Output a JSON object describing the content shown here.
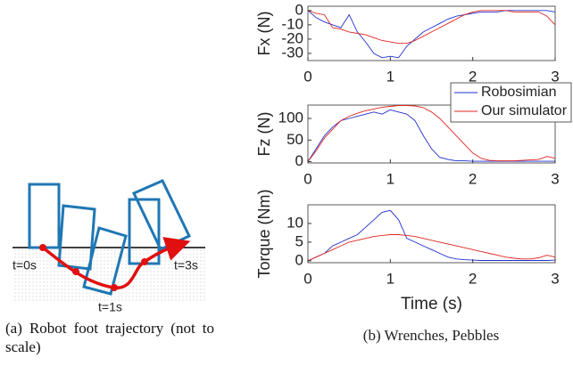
{
  "panel_a": {
    "time_labels": [
      "t=0s",
      "t=1s",
      "t=3s"
    ],
    "caption": "(a) Robot foot trajectory (not to scale)"
  },
  "panel_b": {
    "caption": "(b) Wrenches, Pebbles"
  },
  "chart_data": [
    {
      "type": "line",
      "y_label": "Fx (N)",
      "x": [
        0,
        0.1,
        0.2,
        0.3,
        0.4,
        0.5,
        0.6,
        0.7,
        0.8,
        0.9,
        1.0,
        1.1,
        1.2,
        1.3,
        1.4,
        1.5,
        1.6,
        1.7,
        1.8,
        1.9,
        2.0,
        2.1,
        2.2,
        2.3,
        2.4,
        2.5,
        2.6,
        2.7,
        2.8,
        2.9,
        3.0
      ],
      "xlim": [
        0,
        3
      ],
      "xticks": [
        0,
        1,
        2,
        3
      ],
      "ylim": [
        -35,
        3
      ],
      "yticks": [
        0,
        -10,
        -20,
        -30
      ],
      "series": [
        {
          "color": "#1f2fd0",
          "values": [
            0,
            -5,
            -8,
            -10,
            -12,
            -3,
            -15,
            -22,
            -30,
            -33,
            -32,
            -33,
            -25,
            -20,
            -15,
            -12,
            -9,
            -6,
            -4,
            -3,
            -2,
            -1,
            -1,
            -1,
            0,
            0,
            0,
            0,
            0,
            0,
            -1
          ]
        },
        {
          "color": "#e0251e",
          "values": [
            0,
            -2,
            -3,
            -12,
            -13,
            -15,
            -16,
            -17,
            -19,
            -21,
            -22,
            -23,
            -23,
            -21,
            -18,
            -15,
            -12,
            -9,
            -6,
            -3,
            -1,
            0,
            0,
            0,
            0,
            -1,
            -1,
            -1,
            -1,
            -4,
            -10
          ]
        }
      ]
    },
    {
      "type": "line",
      "y_label": "Fz (N)",
      "legend": "upper right",
      "x": [
        0,
        0.1,
        0.2,
        0.3,
        0.4,
        0.5,
        0.6,
        0.7,
        0.8,
        0.9,
        1.0,
        1.1,
        1.2,
        1.3,
        1.4,
        1.5,
        1.6,
        1.7,
        1.8,
        1.9,
        2.0,
        2.1,
        2.2,
        2.3,
        2.4,
        2.5,
        2.6,
        2.7,
        2.8,
        2.9,
        3.0
      ],
      "xlim": [
        0,
        3
      ],
      "xticks": [
        0,
        1,
        2,
        3
      ],
      "ylim": [
        -3,
        131
      ],
      "yticks": [
        0,
        50,
        100
      ],
      "series": [
        {
          "name": "Robosimian",
          "color": "#1f2fd0",
          "values": [
            0,
            30,
            60,
            80,
            95,
            100,
            105,
            110,
            115,
            110,
            120,
            115,
            110,
            95,
            60,
            30,
            10,
            5,
            2,
            2,
            1,
            1,
            1,
            1,
            1,
            1,
            1,
            1,
            1,
            1,
            1
          ]
        },
        {
          "name": "Our simulator",
          "color": "#e0251e",
          "values": [
            0,
            25,
            55,
            75,
            95,
            105,
            112,
            118,
            122,
            126,
            128,
            130,
            130,
            129,
            125,
            115,
            100,
            80,
            60,
            40,
            20,
            8,
            3,
            2,
            2,
            2,
            3,
            4,
            5,
            12,
            8
          ]
        }
      ]
    },
    {
      "type": "line",
      "y_label": "Torque (Nm)",
      "x_label": "Time (s)",
      "x": [
        0,
        0.1,
        0.2,
        0.3,
        0.4,
        0.5,
        0.6,
        0.7,
        0.8,
        0.9,
        1.0,
        1.1,
        1.2,
        1.3,
        1.4,
        1.5,
        1.6,
        1.7,
        1.8,
        1.9,
        2.0,
        2.1,
        2.2,
        2.3,
        2.4,
        2.5,
        2.6,
        2.7,
        2.8,
        2.9,
        3.0
      ],
      "xlim": [
        0,
        3
      ],
      "xticks": [
        0,
        1,
        2,
        3
      ],
      "ylim": [
        -0.5,
        15
      ],
      "yticks": [
        0,
        5,
        10
      ],
      "series": [
        {
          "color": "#1f2fd0",
          "values": [
            0,
            1,
            2,
            4,
            5,
            6,
            7,
            9,
            11,
            13,
            13.5,
            11,
            6,
            5,
            4,
            3,
            2,
            1,
            0.5,
            0.3,
            0.2,
            0.1,
            0.1,
            0.1,
            0.1,
            0.1,
            0.1,
            0.1,
            0.1,
            0.1,
            0.2
          ]
        },
        {
          "color": "#e0251e",
          "values": [
            0,
            1,
            2,
            3,
            4,
            5,
            5.5,
            6,
            6.5,
            6.8,
            7,
            7,
            6.8,
            6.5,
            6,
            5.5,
            5,
            4.5,
            4,
            3.5,
            3,
            2.5,
            2,
            1.5,
            1,
            0.7,
            0.5,
            0.5,
            0.8,
            1.5,
            1
          ]
        }
      ]
    }
  ]
}
